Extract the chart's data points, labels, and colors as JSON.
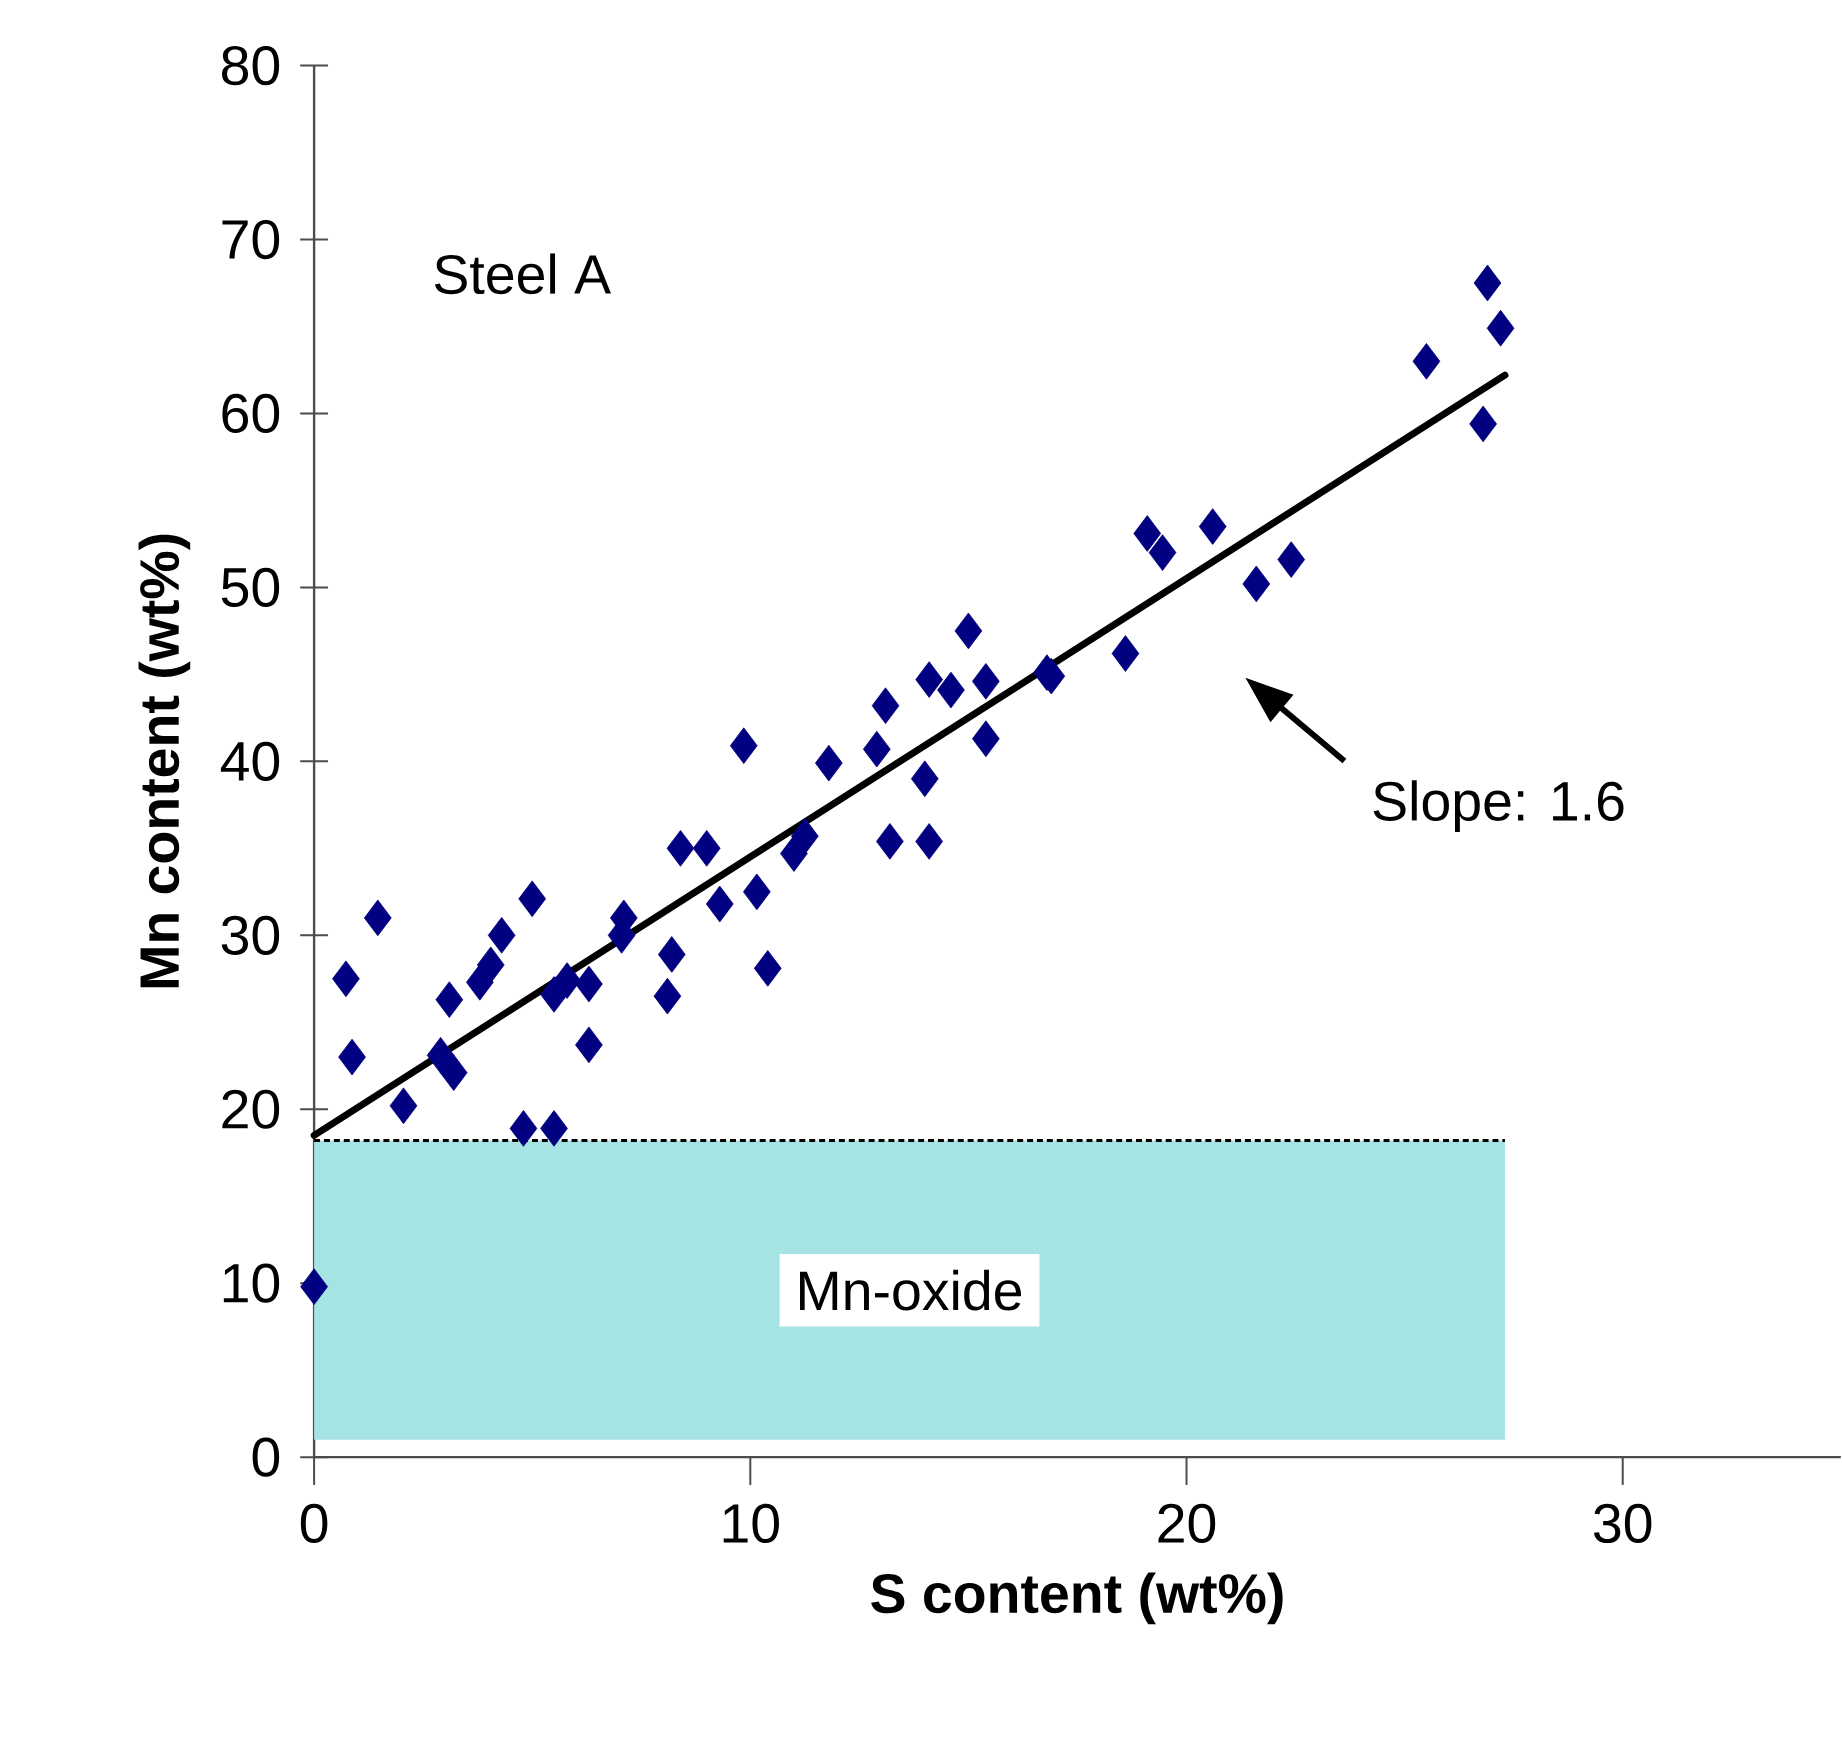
{
  "chart_data": {
    "type": "scatter",
    "xlabel": "S content (wt%)",
    "ylabel": "Mn content (wt%)",
    "xlim": [
      0,
      35
    ],
    "ylim": [
      0,
      80
    ],
    "xticks": [
      0,
      10,
      20,
      30
    ],
    "yticks": [
      0,
      10,
      20,
      30,
      40,
      50,
      60,
      70,
      80
    ],
    "marker": "diamond",
    "grid": false,
    "series": [
      {
        "type": "scatter",
        "color": "#000080",
        "x": [
          0,
          0.73,
          0.87,
          1.46,
          2.05,
          2.9,
          3.1,
          3.2,
          3.8,
          4.05,
          4.3,
          5.0,
          4.8,
          5.5,
          5.5,
          5.8,
          6.3,
          6.3,
          7.1,
          7.05,
          8.2,
          8.1,
          8.4,
          9.0,
          9.3,
          9.85,
          10.15,
          10.4,
          11.0,
          11.25,
          11.8,
          12.9,
          13.1,
          13.2,
          14.1,
          14.0,
          14.1,
          14.6,
          15.4,
          15.4,
          15.0,
          16.9,
          16.8,
          18.6,
          19.1,
          19.45,
          20.6,
          21.6,
          22.4,
          25.5,
          26.9,
          27.2,
          26.8
        ],
        "values": [
          9.8,
          27.5,
          23,
          31,
          20.2,
          23.1,
          26.3,
          22.1,
          27.3,
          28.3,
          30,
          32.1,
          18.9,
          18.9,
          26.6,
          27.4,
          27.2,
          23.7,
          31,
          30,
          28.9,
          26.5,
          35,
          35,
          31.8,
          40.9,
          32.5,
          28.1,
          34.7,
          35.7,
          39.9,
          40.7,
          43.2,
          35.4,
          35.4,
          39,
          44.7,
          44.1,
          41.3,
          44.6,
          47.5,
          44.9,
          45.1,
          46.2,
          53.1,
          52,
          53.5,
          50.2,
          51.6,
          63,
          67.5,
          64.9,
          59.4
        ]
      },
      {
        "type": "line",
        "color": "#000000",
        "line_style": "solid",
        "marker": "none",
        "x": [
          0,
          27.3
        ],
        "values": [
          18.5,
          62.2
        ]
      }
    ],
    "ref_lines": [
      {
        "axis": "y",
        "value": 18.2,
        "color": "#000000",
        "line_style": "dashed"
      }
    ],
    "bands": [
      {
        "axis": "y",
        "from": 1,
        "to": 18.2,
        "label": "Mn-oxide",
        "color": "#a6e3e3"
      }
    ],
    "annotations": [
      "Steel A",
      "Slope: 1.6"
    ]
  }
}
